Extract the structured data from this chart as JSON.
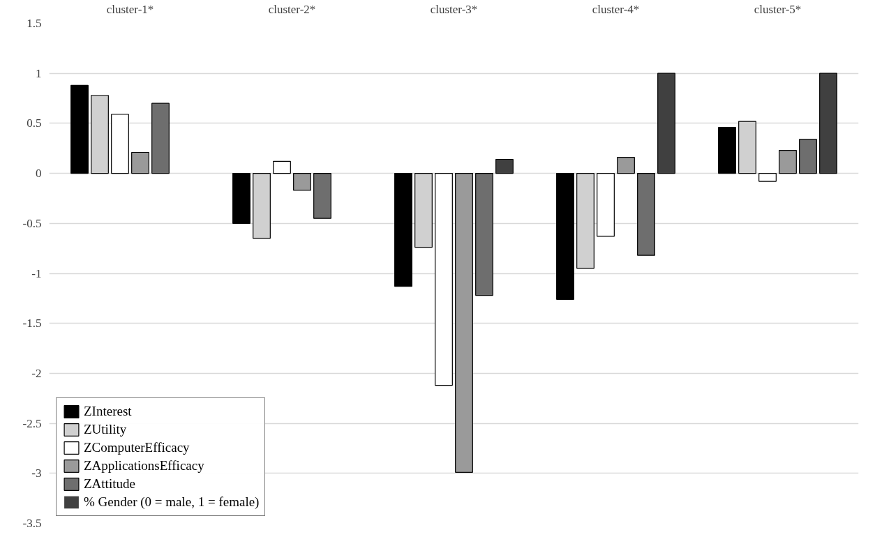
{
  "chart_data": {
    "type": "bar",
    "categories": [
      "cluster-1*",
      "cluster-2*",
      "cluster-3*",
      "cluster-4*",
      "cluster-5*"
    ],
    "series": [
      {
        "name": "ZInterest",
        "color": "#000000",
        "values": [
          0.88,
          -0.5,
          -1.13,
          -1.26,
          0.46
        ]
      },
      {
        "name": "ZUtility",
        "color": "#d0d0d0",
        "values": [
          0.78,
          -0.65,
          -0.74,
          -0.95,
          0.52
        ]
      },
      {
        "name": "ZComputerEfficacy",
        "color": "#ffffff",
        "values": [
          0.59,
          0.12,
          -2.12,
          -0.63,
          -0.08
        ]
      },
      {
        "name": "ZApplicationsEfficacy",
        "color": "#9a9a9a",
        "values": [
          0.21,
          -0.17,
          -2.99,
          0.16,
          0.23
        ]
      },
      {
        "name": "ZAttitude",
        "color": "#6e6e6e",
        "values": [
          0.7,
          -0.45,
          -1.22,
          -0.82,
          0.34
        ]
      },
      {
        "name": "% Gender (0 = male, 1 = female)",
        "color": "#404040",
        "values": [
          0,
          0,
          0.14,
          1,
          1
        ]
      }
    ],
    "ylim": [
      -3.5,
      1.5
    ],
    "yticks": [
      -3.5,
      -3,
      -2.5,
      -2,
      -1.5,
      -1,
      -0.5,
      0,
      0.5,
      1,
      1.5
    ],
    "grid": "y",
    "legend": "bottom left"
  }
}
